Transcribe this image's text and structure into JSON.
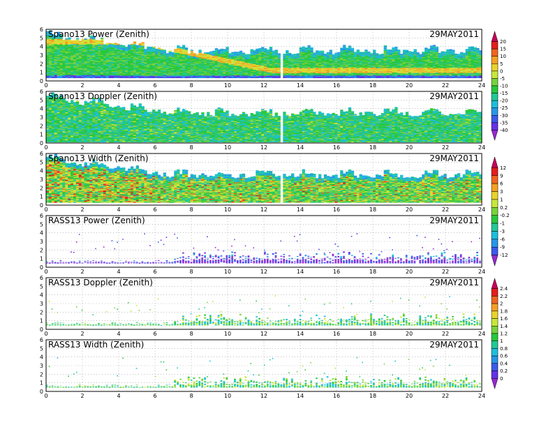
{
  "figure": {
    "background": "#ffffff"
  },
  "chart_data": [
    {
      "type": "heatmap",
      "id": "p0",
      "title": "Spano13 Power (Zenith)",
      "date": "29MAY2011",
      "xlim": [
        0,
        24
      ],
      "ylim": [
        0,
        6
      ],
      "xticks": [
        "0",
        "2",
        "4",
        "6",
        "8",
        "10",
        "12",
        "14",
        "16",
        "18",
        "20",
        "22",
        "24"
      ],
      "yticks": [
        "0",
        "1",
        "2",
        "3",
        "4",
        "5",
        "6"
      ],
      "grid": true,
      "colorbar": {
        "ticks": [
          "20",
          "15",
          "10",
          "5",
          "0",
          "-5",
          "-10",
          "-15",
          "-20",
          "-25",
          "-30",
          "-35",
          "-40"
        ],
        "colors": [
          "#c8005a",
          "#e41e1e",
          "#f06420",
          "#f5a023",
          "#e8d22c",
          "#c8e63c",
          "#78d23c",
          "#28c83c",
          "#22c896",
          "#1ebedc",
          "#2896e6",
          "#3c5aeb",
          "#6432e6",
          "#9628d2"
        ]
      },
      "profile": {
        "base": 0.35,
        "top_start": 5.2,
        "top_end": 3.4,
        "band_level": 1.2
      }
    },
    {
      "type": "heatmap",
      "id": "p1",
      "title": "Spano13 Doppler (Zenith)",
      "date": "29MAY2011",
      "xlim": [
        0,
        24
      ],
      "ylim": [
        0,
        6
      ],
      "xticks": [
        "0",
        "2",
        "4",
        "6",
        "8",
        "10",
        "12",
        "14",
        "16",
        "18",
        "20",
        "22",
        "24"
      ],
      "yticks": [
        "0",
        "1",
        "2",
        "3",
        "4",
        "5",
        "6"
      ],
      "grid": true,
      "profile": {
        "base": 0.1,
        "top_start": 5.2,
        "top_end": 3.4,
        "band_level": 0
      }
    },
    {
      "type": "heatmap",
      "id": "p2",
      "title": "Spano13 Width (Zenith)",
      "date": "29MAY2011",
      "xlim": [
        0,
        24
      ],
      "ylim": [
        0,
        6
      ],
      "xticks": [
        "0",
        "2",
        "4",
        "6",
        "8",
        "10",
        "12",
        "14",
        "16",
        "18",
        "20",
        "22",
        "24"
      ],
      "yticks": [
        "0",
        "1",
        "2",
        "3",
        "4",
        "5",
        "6"
      ],
      "grid": true,
      "colorbar": {
        "ticks": [
          "12",
          "9",
          "6",
          "3",
          "1",
          "0.2",
          "-0.2",
          "-1",
          "-3",
          "-6",
          "-9",
          "-12"
        ],
        "colors": [
          "#c8005a",
          "#e41e1e",
          "#f06420",
          "#f5a023",
          "#e8d22c",
          "#c8e63c",
          "#78d23c",
          "#28c83c",
          "#22c896",
          "#1ebedc",
          "#2896e6",
          "#3c5aeb",
          "#9628d2"
        ]
      },
      "profile": {
        "base": 0.3,
        "top_start": 5.3,
        "top_end": 3.4,
        "band_level": 0
      }
    },
    {
      "type": "heatmap",
      "id": "p3",
      "title": "RASS13 Power (Zenith)",
      "date": "29MAY2011",
      "xlim": [
        0,
        24
      ],
      "ylim": [
        0,
        6
      ],
      "xticks": [
        "0",
        "2",
        "4",
        "6",
        "8",
        "10",
        "12",
        "14",
        "16",
        "18",
        "20",
        "22",
        "24"
      ],
      "yticks": [
        "0",
        "1",
        "2",
        "3",
        "4",
        "5",
        "6"
      ],
      "grid": true,
      "profile": {
        "base": 0.45,
        "top_start": 1.5,
        "top_end": 1.5,
        "band_level": 0
      }
    },
    {
      "type": "heatmap",
      "id": "p4",
      "title": "RASS13 Doppler (Zenith)",
      "date": "29MAY2011",
      "xlim": [
        0,
        24
      ],
      "ylim": [
        0,
        6
      ],
      "xticks": [
        "0",
        "2",
        "4",
        "6",
        "8",
        "10",
        "12",
        "14",
        "16",
        "18",
        "20",
        "22",
        "24"
      ],
      "yticks": [
        "0",
        "1",
        "2",
        "3",
        "4",
        "5",
        "6"
      ],
      "grid": true,
      "colorbar": {
        "ticks": [
          "2.4",
          "2.2",
          "2",
          "1.8",
          "1.6",
          "1.4",
          "1.2",
          "1",
          "0.8",
          "0.6",
          "0.4",
          "0.2",
          "0"
        ],
        "colors": [
          "#c8005a",
          "#e41e1e",
          "#f06420",
          "#f5a023",
          "#e8d22c",
          "#c8e63c",
          "#78d23c",
          "#28c83c",
          "#22c896",
          "#1ebedc",
          "#2896e6",
          "#3c5aeb",
          "#6432e6",
          "#9628d2"
        ]
      },
      "profile": {
        "base": 0.45,
        "top_start": 1.5,
        "top_end": 1.5,
        "band_level": 0
      }
    },
    {
      "type": "heatmap",
      "id": "p5",
      "title": "RASS13 Width (Zenith)",
      "date": "29MAY2011",
      "xlim": [
        0,
        24
      ],
      "ylim": [
        0,
        6
      ],
      "xticks": [
        "0",
        "2",
        "4",
        "6",
        "8",
        "10",
        "12",
        "14",
        "16",
        "18",
        "20",
        "22",
        "24"
      ],
      "yticks": [
        "0",
        "1",
        "2",
        "3",
        "4",
        "5",
        "6"
      ],
      "grid": true,
      "profile": {
        "base": 0.45,
        "top_start": 1.5,
        "top_end": 1.5,
        "band_level": 0
      }
    }
  ]
}
